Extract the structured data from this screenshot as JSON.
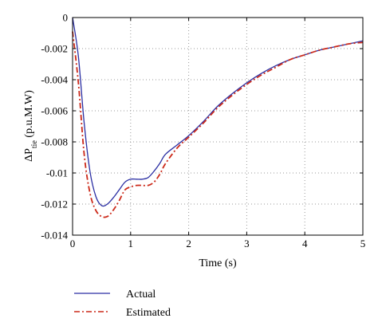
{
  "chart_data": {
    "type": "line",
    "xlabel": "Time (s)",
    "ylabel": {
      "prefix": "ΔP",
      "subscript": "tie",
      "suffix": " (p.u.M.W)"
    },
    "xlim": [
      0,
      5
    ],
    "ylim": [
      -0.014,
      0
    ],
    "grid": true,
    "legend_position": "bottom-left",
    "x_ticks": [
      0,
      1,
      2,
      3,
      4,
      5
    ],
    "x_tick_labels": [
      "0",
      "1",
      "2",
      "3",
      "4",
      "5"
    ],
    "y_ticks": [
      0,
      -0.002,
      -0.004,
      -0.006,
      -0.008,
      -0.01,
      -0.012,
      -0.014
    ],
    "y_tick_labels": [
      "0",
      "-0.002",
      "-0.004",
      "-0.006",
      "-0.008",
      "-0.01",
      "-0.012",
      "-0.014"
    ],
    "x": [
      0,
      0.1,
      0.2,
      0.3,
      0.4,
      0.5,
      0.6,
      0.7,
      0.8,
      0.9,
      1.0,
      1.1,
      1.2,
      1.3,
      1.4,
      1.5,
      1.6,
      1.8,
      2.0,
      2.25,
      2.5,
      2.75,
      3.0,
      3.25,
      3.5,
      3.75,
      4.0,
      4.25,
      4.5,
      4.75,
      5.0
    ],
    "series": [
      {
        "name": "Actual",
        "color": "#2b2fa3",
        "style": "solid",
        "values": [
          0,
          -0.0025,
          -0.0068,
          -0.0099,
          -0.0115,
          -0.0121,
          -0.012,
          -0.0116,
          -0.0111,
          -0.0106,
          -0.0104,
          -0.0104,
          -0.0104,
          -0.0103,
          -0.0099,
          -0.0094,
          -0.0088,
          -0.0082,
          -0.0076,
          -0.0067,
          -0.0057,
          -0.0049,
          -0.0042,
          -0.0036,
          -0.0031,
          -0.0027,
          -0.0024,
          -0.0021,
          -0.0019,
          -0.0017,
          -0.0015
        ]
      },
      {
        "name": "Estimated",
        "color": "#cc2a1a",
        "style": "dash-dot",
        "values": [
          -0.0009,
          -0.0042,
          -0.0088,
          -0.0113,
          -0.0124,
          -0.0128,
          -0.0128,
          -0.0124,
          -0.0118,
          -0.0111,
          -0.0109,
          -0.0108,
          -0.0108,
          -0.0108,
          -0.0106,
          -0.0101,
          -0.0094,
          -0.0084,
          -0.0077,
          -0.0068,
          -0.0058,
          -0.005,
          -0.0043,
          -0.0037,
          -0.0032,
          -0.0027,
          -0.0024,
          -0.0021,
          -0.0019,
          -0.0017,
          -0.0016
        ]
      }
    ]
  }
}
